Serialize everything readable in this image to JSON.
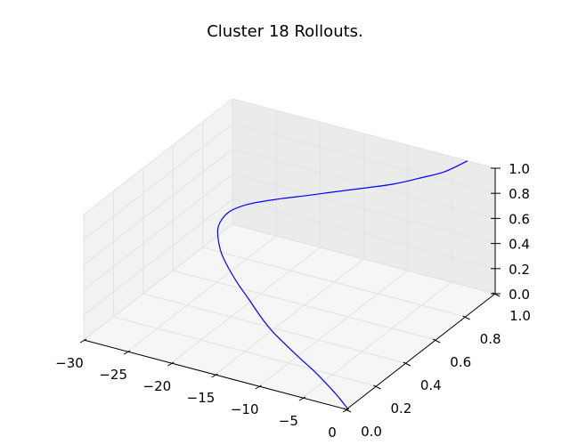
{
  "chart_data": {
    "type": "line3d",
    "title": "Cluster 18 Rollouts.",
    "xlabel": "",
    "ylabel": "",
    "zlabel": "",
    "xlim": [
      -30,
      0
    ],
    "ylim": [
      0,
      1
    ],
    "zlim": [
      0,
      1
    ],
    "x_ticks": [
      "−30",
      "−25",
      "−20",
      "−15",
      "−10",
      "−5",
      "0"
    ],
    "y_ticks": [
      "0.0",
      "0.2",
      "0.4",
      "0.6",
      "0.8",
      "1.0"
    ],
    "z_ticks": [
      "0.0",
      "0.2",
      "0.4",
      "0.6",
      "0.8",
      "1.0"
    ],
    "grid": true,
    "series": [
      {
        "color": "#0000ff",
        "x": [
          -0.09,
          -1.5,
          -3.13,
          -5.09,
          -7.31,
          -9.42,
          -11.42,
          -13.37,
          -15.75,
          -17.85,
          -19.74,
          -21.39,
          -22.81,
          -23.48,
          -23.56,
          -23.06,
          -21.63,
          -19.06,
          -16.43,
          -13.91,
          -11.3,
          -8.81,
          -6.69,
          -4.75,
          -3.17
        ],
        "y": [
          0.01,
          0.03,
          0.05,
          0.08,
          0.11,
          0.14,
          0.17,
          0.21,
          0.27,
          0.32,
          0.37,
          0.42,
          0.48,
          0.52,
          0.56,
          0.59,
          0.63,
          0.68,
          0.72,
          0.76,
          0.8,
          0.84,
          0.89,
          0.94,
          1.0
        ],
        "z": [
          0.0,
          0.05,
          0.1,
          0.14,
          0.18,
          0.22,
          0.26,
          0.3,
          0.34,
          0.38,
          0.42,
          0.46,
          0.5,
          0.54,
          0.58,
          0.62,
          0.66,
          0.7,
          0.74,
          0.78,
          0.82,
          0.86,
          0.9,
          0.94,
          1.0
        ]
      }
    ]
  }
}
